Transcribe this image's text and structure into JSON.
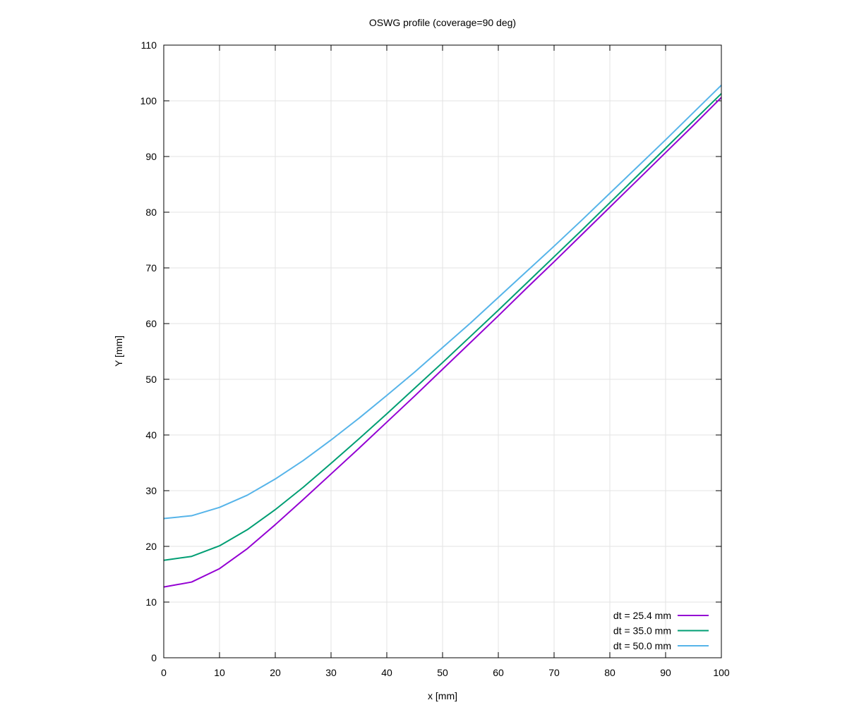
{
  "chart_data": {
    "type": "line",
    "title": "OSWG profile (coverage=90 deg)",
    "xlabel": "x [mm]",
    "ylabel": "Y [mm]",
    "xlim": [
      0,
      100
    ],
    "ylim": [
      0,
      110
    ],
    "xticks": [
      0,
      10,
      20,
      30,
      40,
      50,
      60,
      70,
      80,
      90,
      100
    ],
    "yticks": [
      0,
      10,
      20,
      30,
      40,
      50,
      60,
      70,
      80,
      90,
      100,
      110
    ],
    "grid": true,
    "legend_position": "bottom-right",
    "x": [
      0,
      5,
      10,
      15,
      20,
      25,
      30,
      35,
      40,
      45,
      50,
      55,
      60,
      65,
      70,
      75,
      80,
      85,
      90,
      95,
      100
    ],
    "series": [
      {
        "name": "dt = 25.4 mm",
        "color": "#9400d3",
        "values": [
          12.7,
          13.6,
          16.0,
          19.6,
          23.9,
          28.4,
          33.0,
          37.6,
          42.3,
          47.0,
          51.8,
          56.6,
          61.4,
          66.3,
          71.1,
          76.0,
          80.9,
          85.8,
          90.7,
          95.6,
          100.6
        ]
      },
      {
        "name": "dt = 35.0 mm",
        "color": "#009e73",
        "values": [
          17.5,
          18.2,
          20.1,
          23.0,
          26.6,
          30.6,
          34.9,
          39.3,
          43.8,
          48.4,
          53.0,
          57.7,
          62.4,
          67.2,
          72.0,
          76.8,
          81.7,
          86.6,
          91.5,
          96.4,
          101.3
        ]
      },
      {
        "name": "dt = 50.0 mm",
        "color": "#56b4e9",
        "values": [
          25.0,
          25.5,
          27.0,
          29.2,
          32.1,
          35.4,
          39.1,
          43.0,
          47.1,
          51.3,
          55.7,
          60.1,
          64.7,
          69.3,
          73.9,
          78.6,
          83.4,
          88.2,
          93.0,
          97.9,
          102.8
        ]
      }
    ]
  }
}
